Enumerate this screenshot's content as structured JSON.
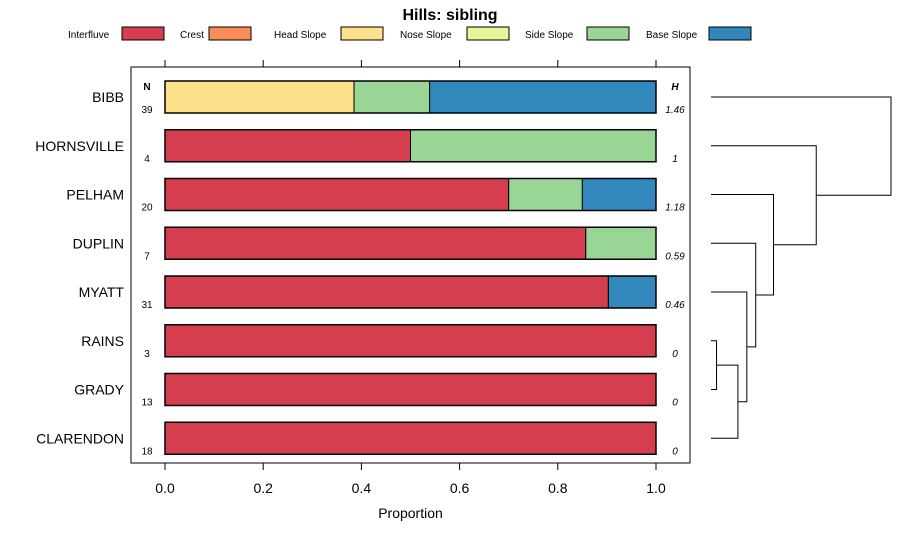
{
  "chart_data": {
    "type": "bar",
    "orientation": "horizontal-stacked",
    "title": "Hills: sibling",
    "xlabel": "Proportion",
    "xlim": [
      0,
      1
    ],
    "xticks": [
      0.0,
      0.2,
      0.4,
      0.6,
      0.8,
      1.0
    ],
    "xtick_labels": [
      "0.0",
      "0.2",
      "0.4",
      "0.6",
      "0.8",
      "1.0"
    ],
    "n_header": "N",
    "h_header": "H",
    "legend": [
      {
        "name": "Interfluve",
        "color": "#D53E4F"
      },
      {
        "name": "Crest",
        "color": "#FC8D59"
      },
      {
        "name": "Head Slope",
        "color": "#FEE08B"
      },
      {
        "name": "Nose Slope",
        "color": "#E6F598"
      },
      {
        "name": "Side Slope",
        "color": "#99D594"
      },
      {
        "name": "Base Slope",
        "color": "#3288BD"
      }
    ],
    "categories": [
      "BIBB",
      "HORNSVILLE",
      "PELHAM",
      "DUPLIN",
      "MYATT",
      "RAINS",
      "GRADY",
      "CLARENDON"
    ],
    "n": [
      "39",
      "4",
      "20",
      "7",
      "31",
      "3",
      "13",
      "18"
    ],
    "h": [
      "1.46",
      "1",
      "1.18",
      "0.59",
      "0.46",
      "0",
      "0",
      "0"
    ],
    "series": [
      {
        "name": "Interfluve",
        "values": [
          0.0,
          0.5,
          0.7,
          0.857,
          0.903,
          1.0,
          1.0,
          1.0
        ]
      },
      {
        "name": "Crest",
        "values": [
          0,
          0,
          0,
          0,
          0,
          0,
          0,
          0
        ]
      },
      {
        "name": "Head Slope",
        "values": [
          0.385,
          0,
          0,
          0,
          0,
          0,
          0,
          0
        ]
      },
      {
        "name": "Nose Slope",
        "values": [
          0,
          0,
          0,
          0,
          0,
          0,
          0,
          0
        ]
      },
      {
        "name": "Side Slope",
        "values": [
          0.154,
          0.5,
          0.15,
          0.143,
          0,
          0,
          0,
          0
        ]
      },
      {
        "name": "Base Slope",
        "values": [
          0.461,
          0,
          0.15,
          0,
          0.097,
          0,
          0,
          0
        ]
      }
    ],
    "dendrogram": {
      "merge_order": [
        [
          "RAINS",
          "GRADY"
        ],
        [
          "RAINS+GRADY",
          "CLARENDON"
        ],
        [
          "MYATT",
          "RAINS+GRADY+CLARENDON"
        ],
        [
          "DUPLIN",
          "MYATT+RAINS+GRADY+CLARENDON"
        ],
        [
          "PELHAM",
          "DUPLIN+MYATT+RAINS+GRADY+CLARENDON"
        ],
        [
          "HORNSVILLE",
          "PELHAM+DUPLIN+MYATT+RAINS+GRADY+CLARENDON"
        ],
        [
          "BIBB",
          "HORNSVILLE+PELHAM+DUPLIN+MYATT+RAINS+GRADY+CLARENDON"
        ]
      ],
      "heights": [
        0.02,
        0.14,
        0.19,
        0.24,
        0.34,
        0.58,
        1.0
      ]
    }
  }
}
